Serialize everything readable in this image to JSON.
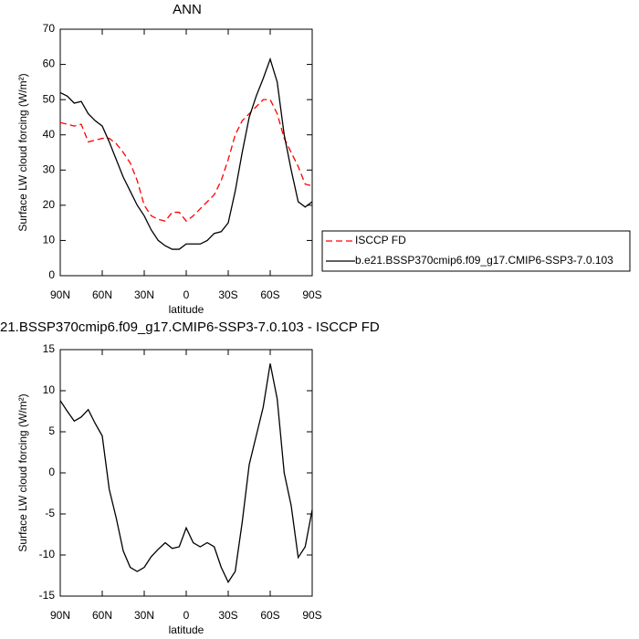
{
  "chart_data": [
    {
      "type": "line",
      "title": "ANN",
      "xlabel": "latitude",
      "ylabel": "Surface LW cloud forcing (W/m²)",
      "x": [
        90,
        85,
        80,
        75,
        70,
        65,
        60,
        55,
        50,
        45,
        40,
        35,
        30,
        25,
        20,
        15,
        10,
        5,
        0,
        -5,
        -10,
        -15,
        -20,
        -25,
        -30,
        -35,
        -40,
        -45,
        -50,
        -55,
        -60,
        -65,
        -70,
        -75,
        -80,
        -85,
        -90
      ],
      "xlim": [
        90,
        -90
      ],
      "xticks": [
        {
          "value": 90,
          "label": "90N"
        },
        {
          "value": 60,
          "label": "60N"
        },
        {
          "value": 30,
          "label": "30N"
        },
        0,
        {
          "value": -30,
          "label": "30S"
        },
        {
          "value": -60,
          "label": "60S"
        },
        {
          "value": -90,
          "label": "90S"
        }
      ],
      "ylim": [
        0,
        70
      ],
      "yticks": [
        0,
        10,
        20,
        30,
        40,
        50,
        60,
        70
      ],
      "legend": "outside-right",
      "series": [
        {
          "name": "ISCCP FD",
          "color": "#ff0000",
          "linestyle": "dashed",
          "values": [
            43.5,
            43,
            42.5,
            43,
            38,
            38.5,
            39,
            39,
            37.5,
            35,
            32,
            27,
            20,
            17,
            16,
            15.5,
            18,
            18,
            15.5,
            17,
            19,
            21,
            23,
            27,
            33,
            40,
            44,
            46,
            48,
            50,
            50,
            46,
            39,
            35,
            31,
            26,
            25.5
          ]
        },
        {
          "name": "b.e21.BSSP370cmip6.f09_g17.CMIP6-SSP3-7.0.103",
          "color": "#000000",
          "linestyle": "solid",
          "values": [
            52,
            51,
            49,
            49.5,
            46,
            44,
            42.5,
            38,
            33,
            28,
            24,
            20,
            17,
            13,
            10,
            8.5,
            7.5,
            7.5,
            9,
            9,
            9,
            10,
            12,
            12.5,
            15,
            24,
            35,
            45,
            51,
            56,
            61.5,
            55,
            40,
            30,
            21,
            19.5,
            21
          ]
        }
      ]
    },
    {
      "type": "line",
      "title": "21.BSSP370cmip6.f09_g17.CMIP6-SSP3-7.0.103 - ISCCP FD",
      "xlabel": "latitude",
      "ylabel": "Surface LW cloud forcing (W/m²)",
      "x": [
        90,
        85,
        80,
        75,
        70,
        65,
        60,
        55,
        50,
        45,
        40,
        35,
        30,
        25,
        20,
        15,
        10,
        5,
        0,
        -5,
        -10,
        -15,
        -20,
        -25,
        -30,
        -35,
        -40,
        -45,
        -50,
        -55,
        -60,
        -65,
        -70,
        -75,
        -80,
        -85,
        -90
      ],
      "xlim": [
        90,
        -90
      ],
      "xticks": [
        {
          "value": 90,
          "label": "90N"
        },
        {
          "value": 60,
          "label": "60N"
        },
        {
          "value": 30,
          "label": "30N"
        },
        0,
        {
          "value": -30,
          "label": "30S"
        },
        {
          "value": -60,
          "label": "60S"
        },
        {
          "value": -90,
          "label": "90S"
        }
      ],
      "ylim": [
        -15,
        15
      ],
      "yticks": [
        -15,
        -10,
        -5,
        0,
        5,
        10,
        15
      ],
      "series": [
        {
          "color": "#000000",
          "linestyle": "solid",
          "values": [
            8.8,
            7.5,
            6.3,
            6.8,
            7.7,
            6,
            4.5,
            -2,
            -5.5,
            -9.5,
            -11.5,
            -12,
            -11.5,
            -10.2,
            -9.3,
            -8.5,
            -9.2,
            -9,
            -6.7,
            -8.5,
            -9,
            -8.5,
            -9,
            -11.5,
            -13.3,
            -12,
            -6,
            1,
            4.5,
            8,
            13.3,
            9,
            0,
            -4,
            -10.3,
            -9,
            -4.5
          ]
        }
      ]
    }
  ]
}
